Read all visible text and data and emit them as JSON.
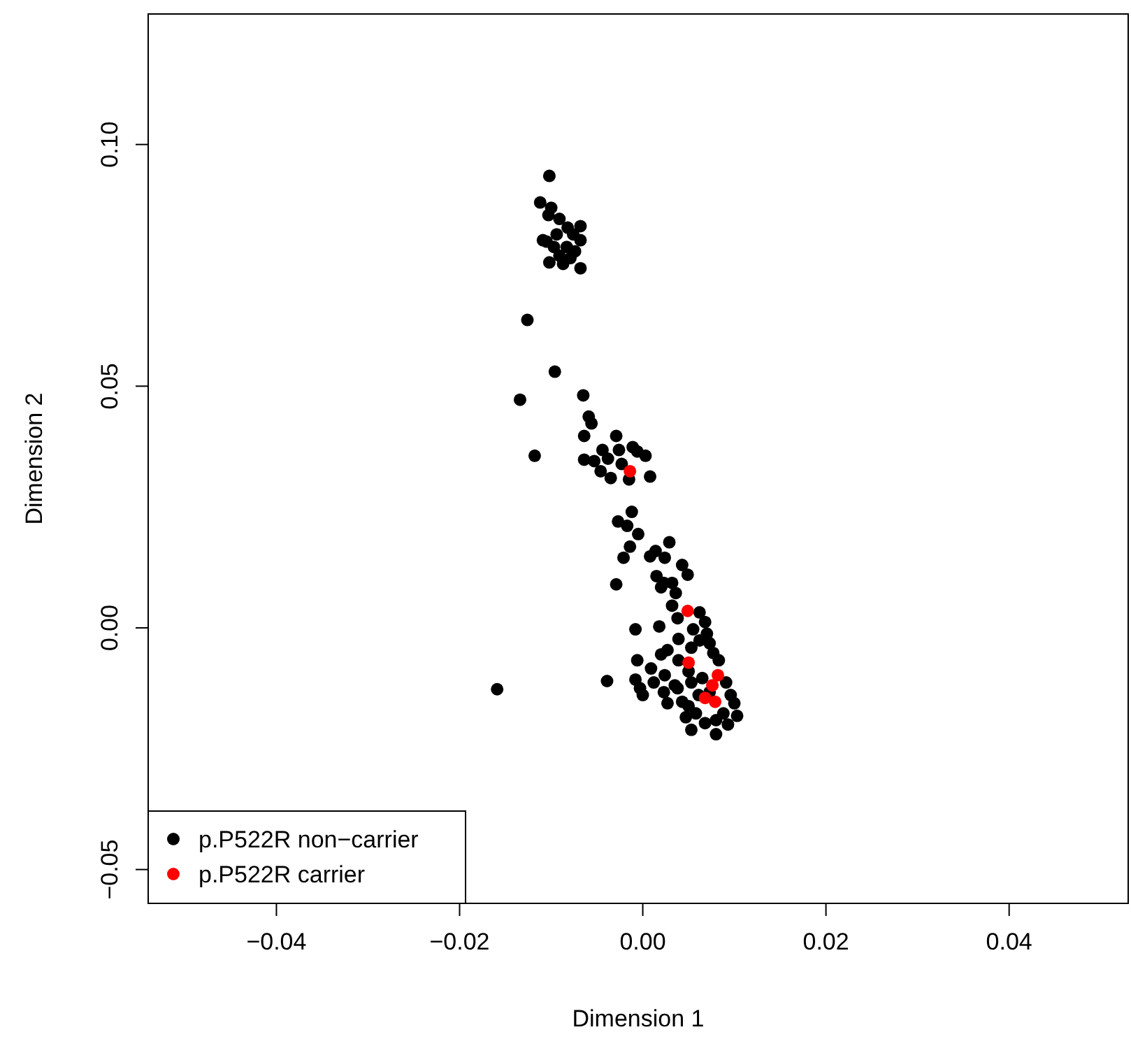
{
  "chart_data": {
    "type": "scatter",
    "xlabel": "Dimension 1",
    "ylabel": "Dimension 2",
    "xlim": [
      -0.054,
      0.053
    ],
    "ylim": [
      -0.057,
      0.127
    ],
    "xticks": [
      {
        "value": -0.04,
        "label": "−0.04"
      },
      {
        "value": -0.02,
        "label": "−0.02"
      },
      {
        "value": 0,
        "label": "0.00"
      },
      {
        "value": 0.02,
        "label": "0.02"
      },
      {
        "value": 0.04,
        "label": "0.04"
      }
    ],
    "yticks": [
      {
        "value": -0.05,
        "label": "−0.05"
      },
      {
        "value": 0,
        "label": "0.00"
      },
      {
        "value": 0.05,
        "label": "0.05"
      },
      {
        "value": 0.1,
        "label": "0.10"
      }
    ],
    "grid": false,
    "legend": "bottom left",
    "marker": "circle",
    "series": [
      {
        "name": "p.P522R non−carrier",
        "color": "#000000",
        "x": [
          -0.0102,
          -0.0112,
          -0.01,
          -0.0103,
          -0.0091,
          -0.0068,
          -0.0082,
          -0.0109,
          -0.0094,
          -0.0068,
          -0.0097,
          -0.0083,
          -0.0074,
          -0.0102,
          -0.0087,
          -0.0068,
          -0.0091,
          -0.0079,
          -0.0105,
          -0.0076,
          -0.0126,
          -0.0096,
          -0.0134,
          -0.0065,
          -0.0118,
          -0.0059,
          -0.0056,
          -0.0064,
          -0.0029,
          -0.0044,
          -0.0026,
          -0.0011,
          -0.0006,
          0.0003,
          -0.0064,
          -0.0053,
          -0.0038,
          -0.0023,
          -0.0046,
          -0.0035,
          -0.0015,
          0.0008,
          -0.0012,
          -0.0027,
          -0.0017,
          -0.0005,
          -0.0014,
          -0.0021,
          0.0008,
          0.0029,
          0.0014,
          0.0024,
          0.0043,
          0.0049,
          0.0015,
          0.0023,
          0.0032,
          -0.0029,
          0.0036,
          0.0032,
          0.002,
          0.0062,
          0.0038,
          0.0018,
          -0.0008,
          0.0055,
          0.0068,
          0.0039,
          0.0062,
          0.0073,
          0.0027,
          0.002,
          -0.0006,
          0.0039,
          0.0083,
          0.0009,
          0.0024,
          -0.0039,
          -0.0008,
          0.0,
          -0.0003,
          -0.0159,
          0.0023,
          0.0038,
          0.0053,
          0.0091,
          0.0096,
          0.01,
          0.0103,
          0.0093,
          0.0058,
          0.0068,
          0.0053,
          0.008,
          0.0027,
          0.0043,
          0.0047,
          0.0088,
          0.0061,
          0.0077,
          0.0053,
          0.007,
          0.005,
          0.0065,
          0.0035,
          0.0073,
          0.005,
          0.008,
          0.0012
        ],
        "values": [
          0.0935,
          0.088,
          0.0869,
          0.0854,
          0.0846,
          0.0831,
          0.0828,
          0.0802,
          0.0814,
          0.0802,
          0.0788,
          0.0788,
          0.0779,
          0.0756,
          0.0753,
          0.0744,
          0.077,
          0.0765,
          0.0799,
          0.0814,
          0.0637,
          0.053,
          0.0472,
          0.0481,
          0.0356,
          0.0437,
          0.0423,
          0.0397,
          0.0397,
          0.0368,
          0.0368,
          0.0374,
          0.0365,
          0.0356,
          0.0348,
          0.0345,
          0.035,
          0.0339,
          0.0324,
          0.031,
          0.0307,
          0.0313,
          0.024,
          0.022,
          0.0211,
          0.0194,
          0.0168,
          0.0145,
          0.0148,
          0.0177,
          0.0159,
          0.0145,
          0.013,
          0.011,
          0.0107,
          0.0093,
          0.0093,
          0.009,
          0.0072,
          0.0046,
          0.0084,
          0.0032,
          0.002,
          0.0003,
          -0.0003,
          -0.0003,
          0.0012,
          -0.0023,
          -0.0026,
          -0.0032,
          -0.0046,
          -0.0055,
          -0.0067,
          -0.0067,
          -0.0067,
          -0.0084,
          -0.0098,
          -0.011,
          -0.0107,
          -0.0139,
          -0.0125,
          -0.0127,
          -0.0133,
          -0.0125,
          -0.0113,
          -0.0113,
          -0.0139,
          -0.0156,
          -0.0182,
          -0.02,
          -0.0177,
          -0.0197,
          -0.0211,
          -0.022,
          -0.0156,
          -0.0153,
          -0.0185,
          -0.0177,
          -0.0139,
          -0.0052,
          -0.0041,
          -0.0012,
          -0.009,
          -0.0104,
          -0.0119,
          -0.0133,
          -0.0162,
          -0.0191,
          -0.0113
        ]
      },
      {
        "name": "p.P522R carrier",
        "color": "#ff0000",
        "x": [
          -0.0014,
          0.0049,
          0.005,
          0.0082,
          0.0076,
          0.0068,
          0.0079
        ],
        "values": [
          0.0324,
          0.0035,
          -0.0072,
          -0.0098,
          -0.0119,
          -0.0145,
          -0.0153
        ]
      }
    ]
  }
}
